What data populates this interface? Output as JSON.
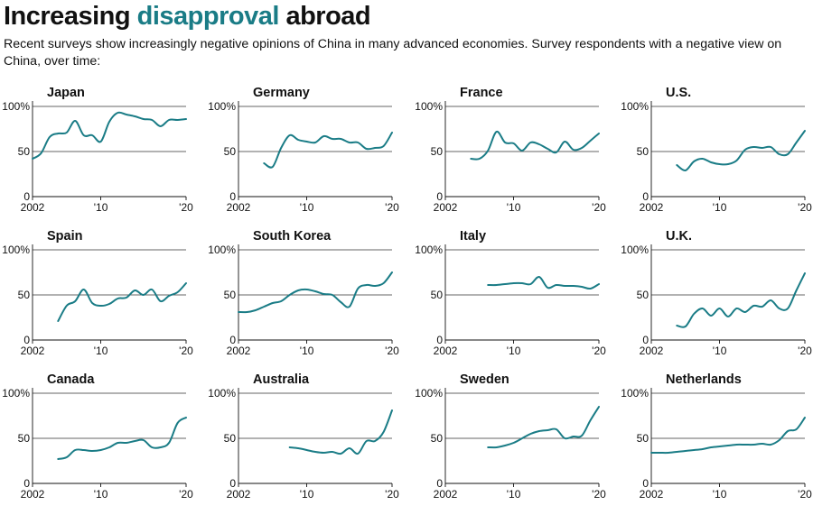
{
  "header": {
    "title_part1": "Increasing ",
    "title_highlight": "disapproval",
    "title_part2": " abroad",
    "subtitle": "Recent surveys show increasingly negative opinions of China in many advanced economies. Survey respondents with a negative view on China, over time:"
  },
  "colors": {
    "line": "#1a7c86",
    "axis": "#111111",
    "grid": "#333333",
    "highlight": "#1a7c86"
  },
  "axis_labels": {
    "y_ticks": [
      "100%",
      "50",
      "0"
    ],
    "x_ticks": [
      "2002",
      "'10",
      "'20"
    ]
  },
  "chart_data": [
    {
      "type": "line",
      "title": "Japan",
      "xlim": [
        2002,
        2020
      ],
      "ylim": [
        0,
        100
      ],
      "x": [
        2002,
        2003,
        2004,
        2005,
        2006,
        2007,
        2008,
        2009,
        2010,
        2011,
        2012,
        2013,
        2014,
        2015,
        2016,
        2017,
        2018,
        2019,
        2020
      ],
      "y": [
        42,
        48,
        66,
        70,
        71,
        84,
        68,
        68,
        61,
        83,
        93,
        91,
        89,
        86,
        85,
        78,
        85,
        85,
        86
      ]
    },
    {
      "type": "line",
      "title": "Germany",
      "xlim": [
        2002,
        2020
      ],
      "ylim": [
        0,
        100
      ],
      "x": [
        2005,
        2006,
        2007,
        2008,
        2009,
        2010,
        2011,
        2012,
        2013,
        2014,
        2015,
        2016,
        2017,
        2018,
        2019,
        2020
      ],
      "y": [
        37,
        33,
        54,
        68,
        63,
        61,
        60,
        67,
        64,
        64,
        60,
        60,
        53,
        54,
        56,
        71
      ]
    },
    {
      "type": "line",
      "title": "France",
      "xlim": [
        2002,
        2020
      ],
      "ylim": [
        0,
        100
      ],
      "x": [
        2005,
        2006,
        2007,
        2008,
        2009,
        2010,
        2011,
        2012,
        2013,
        2014,
        2015,
        2016,
        2017,
        2018,
        2019,
        2020
      ],
      "y": [
        42,
        42,
        51,
        72,
        60,
        59,
        51,
        60,
        58,
        53,
        49,
        61,
        52,
        54,
        62,
        70
      ]
    },
    {
      "type": "line",
      "title": "U.S.",
      "xlim": [
        2002,
        2020
      ],
      "ylim": [
        0,
        100
      ],
      "x": [
        2005,
        2006,
        2007,
        2008,
        2009,
        2010,
        2011,
        2012,
        2013,
        2014,
        2015,
        2016,
        2017,
        2018,
        2019,
        2020
      ],
      "y": [
        35,
        29,
        39,
        42,
        38,
        36,
        36,
        40,
        52,
        55,
        54,
        55,
        47,
        47,
        60,
        73
      ]
    },
    {
      "type": "line",
      "title": "Spain",
      "xlim": [
        2002,
        2020
      ],
      "ylim": [
        0,
        100
      ],
      "x": [
        2005,
        2006,
        2007,
        2008,
        2009,
        2010,
        2011,
        2012,
        2013,
        2014,
        2015,
        2016,
        2017,
        2018,
        2019,
        2020
      ],
      "y": [
        21,
        38,
        43,
        56,
        41,
        38,
        40,
        46,
        47,
        55,
        50,
        56,
        43,
        49,
        53,
        63
      ]
    },
    {
      "type": "line",
      "title": "South Korea",
      "xlim": [
        2002,
        2020
      ],
      "ylim": [
        0,
        100
      ],
      "x": [
        2002,
        2003,
        2004,
        2005,
        2006,
        2007,
        2008,
        2009,
        2010,
        2011,
        2012,
        2013,
        2014,
        2015,
        2016,
        2017,
        2018,
        2019,
        2020
      ],
      "y": [
        31,
        31,
        33,
        37,
        41,
        43,
        50,
        55,
        56,
        54,
        51,
        50,
        42,
        37,
        57,
        61,
        60,
        63,
        75
      ]
    },
    {
      "type": "line",
      "title": "Italy",
      "xlim": [
        2002,
        2020
      ],
      "ylim": [
        0,
        100
      ],
      "x": [
        2007,
        2008,
        2009,
        2010,
        2011,
        2012,
        2013,
        2014,
        2015,
        2016,
        2017,
        2018,
        2019,
        2020
      ],
      "y": [
        61,
        61,
        62,
        63,
        63,
        62,
        70,
        58,
        61,
        60,
        60,
        59,
        57,
        62
      ]
    },
    {
      "type": "line",
      "title": "U.K.",
      "xlim": [
        2002,
        2020
      ],
      "ylim": [
        0,
        100
      ],
      "x": [
        2005,
        2006,
        2007,
        2008,
        2009,
        2010,
        2011,
        2012,
        2013,
        2014,
        2015,
        2016,
        2017,
        2018,
        2019,
        2020
      ],
      "y": [
        16,
        15,
        29,
        35,
        27,
        35,
        26,
        35,
        31,
        38,
        37,
        44,
        35,
        35,
        55,
        74
      ]
    },
    {
      "type": "line",
      "title": "Canada",
      "xlim": [
        2002,
        2020
      ],
      "ylim": [
        0,
        100
      ],
      "x": [
        2005,
        2006,
        2007,
        2008,
        2009,
        2010,
        2011,
        2012,
        2013,
        2014,
        2015,
        2016,
        2017,
        2018,
        2019,
        2020
      ],
      "y": [
        27,
        29,
        37,
        37,
        36,
        37,
        40,
        45,
        45,
        47,
        48,
        40,
        40,
        45,
        67,
        73
      ]
    },
    {
      "type": "line",
      "title": "Australia",
      "xlim": [
        2002,
        2020
      ],
      "ylim": [
        0,
        100
      ],
      "x": [
        2008,
        2009,
        2010,
        2011,
        2012,
        2013,
        2014,
        2015,
        2016,
        2017,
        2018,
        2019,
        2020
      ],
      "y": [
        40,
        39,
        37,
        35,
        34,
        35,
        33,
        39,
        33,
        47,
        47,
        57,
        81
      ]
    },
    {
      "type": "line",
      "title": "Sweden",
      "xlim": [
        2002,
        2020
      ],
      "ylim": [
        0,
        100
      ],
      "x": [
        2007,
        2008,
        2009,
        2010,
        2011,
        2012,
        2013,
        2014,
        2015,
        2016,
        2017,
        2018,
        2019,
        2020
      ],
      "y": [
        40,
        40,
        42,
        45,
        50,
        55,
        58,
        59,
        60,
        50,
        52,
        53,
        70,
        85
      ]
    },
    {
      "type": "line",
      "title": "Netherlands",
      "xlim": [
        2002,
        2020
      ],
      "ylim": [
        0,
        100
      ],
      "x": [
        2002,
        2003,
        2004,
        2005,
        2006,
        2007,
        2008,
        2009,
        2010,
        2011,
        2012,
        2013,
        2014,
        2015,
        2016,
        2017,
        2018,
        2019,
        2020
      ],
      "y": [
        34,
        34,
        34,
        35,
        36,
        37,
        38,
        40,
        41,
        42,
        43,
        43,
        43,
        44,
        43,
        48,
        58,
        60,
        73
      ]
    }
  ]
}
